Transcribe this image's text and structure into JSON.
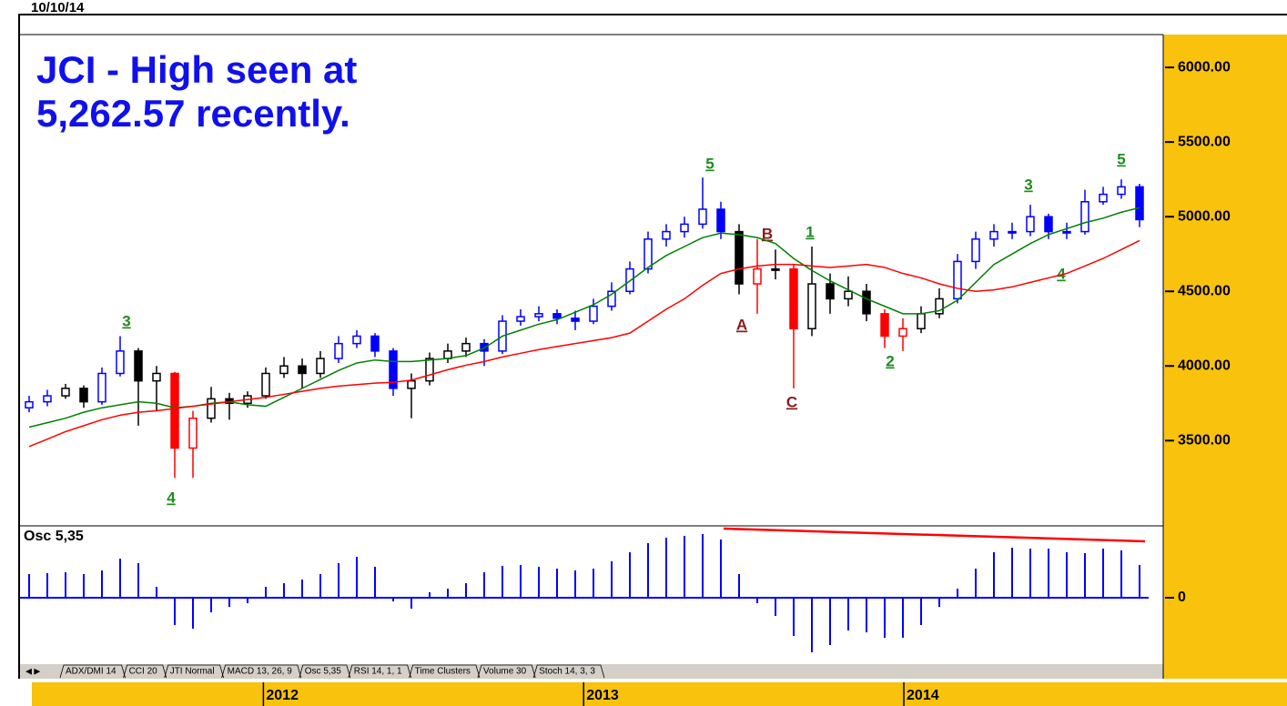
{
  "date": "10/10/14",
  "tabs": [
    "ADX/DMI 14",
    "CCI 20",
    "JTI Normal",
    "MACD 13, 26, 9",
    "Osc 5,35",
    "RSI 14, 1, 1",
    "Time Clusters",
    "Volume 30",
    "Stoch 14, 3, 3"
  ],
  "time_axis": {
    "xlim": [
      2011.24,
      2014.81
    ],
    "xticks": [
      2012,
      2013,
      2014
    ]
  },
  "chart_data": [
    {
      "type": "candlestick",
      "title_lines": [
        "JCI - High seen at",
        "5,262.57 recently."
      ],
      "ylim": [
        2935,
        6220
      ],
      "yticks": [
        {
          "value": 3500,
          "label": "3500.00"
        },
        {
          "value": 4000,
          "label": "4000.00"
        },
        {
          "value": 4500,
          "label": "4500.00"
        },
        {
          "value": 5000,
          "label": "5000.00"
        },
        {
          "value": 5500,
          "label": "5500.00"
        },
        {
          "value": 6000,
          "label": "6000.00"
        }
      ],
      "open": [
        3720,
        3760,
        3800,
        3850,
        3760,
        3950,
        4100,
        3900,
        3950,
        3450,
        3650,
        3780,
        3750,
        3800,
        3950,
        4000,
        3950,
        4050,
        4150,
        4200,
        4100,
        3850,
        3900,
        4050,
        4100,
        4150,
        4100,
        4300,
        4330,
        4350,
        4320,
        4300,
        4400,
        4500,
        4650,
        4850,
        4900,
        4950,
        5050,
        4900,
        4550,
        4650,
        4650,
        4250,
        4550,
        4450,
        4500,
        4350,
        4200,
        4250,
        4350,
        4450,
        4700,
        4850,
        4900,
        4900,
        5000,
        4900,
        4900,
        5100,
        5150,
        5200
      ],
      "high": [
        3800,
        3840,
        3880,
        3870,
        3990,
        4200,
        4120,
        4000,
        3960,
        3700,
        3860,
        3820,
        3830,
        3990,
        4060,
        4050,
        4100,
        4200,
        4240,
        4220,
        4120,
        3950,
        4090,
        4150,
        4190,
        4180,
        4340,
        4380,
        4400,
        4380,
        4370,
        4450,
        4560,
        4700,
        4900,
        4950,
        5000,
        5262,
        5100,
        4950,
        4850,
        4780,
        4680,
        4800,
        4620,
        4600,
        4550,
        4380,
        4320,
        4400,
        4520,
        4750,
        4900,
        4950,
        4960,
        5080,
        5020,
        4960,
        5180,
        5200,
        5250,
        5220
      ],
      "low": [
        3690,
        3730,
        3780,
        3720,
        3740,
        3930,
        3600,
        3700,
        3250,
        3250,
        3620,
        3640,
        3720,
        3780,
        3920,
        3850,
        3920,
        4020,
        4120,
        4060,
        3800,
        3650,
        3870,
        4020,
        4060,
        4000,
        4080,
        4270,
        4300,
        4280,
        4240,
        4280,
        4370,
        4480,
        4620,
        4800,
        4860,
        4920,
        4850,
        4480,
        4350,
        4580,
        3850,
        4200,
        4350,
        4400,
        4300,
        4120,
        4100,
        4220,
        4320,
        4420,
        4650,
        4800,
        4850,
        4870,
        4850,
        4850,
        4880,
        5080,
        5120,
        4930
      ],
      "close": [
        3760,
        3800,
        3850,
        3760,
        3950,
        4100,
        3900,
        3950,
        3450,
        3650,
        3780,
        3750,
        3800,
        3950,
        4000,
        3950,
        4050,
        4150,
        4200,
        4100,
        3850,
        3900,
        4050,
        4100,
        4150,
        4100,
        4300,
        4330,
        4350,
        4320,
        4300,
        4400,
        4500,
        4650,
        4850,
        4900,
        4950,
        5050,
        4900,
        4550,
        4650,
        4650,
        4250,
        4550,
        4450,
        4500,
        4350,
        4200,
        4250,
        4350,
        4450,
        4700,
        4850,
        4900,
        4900,
        5000,
        4900,
        4900,
        5100,
        5150,
        5200,
        4980
      ],
      "colors": [
        "#0000ff",
        "#0000ff",
        "#000000",
        "#000000",
        "#0000ff",
        "#0000ff",
        "#000000",
        "#000000",
        "#ff0000",
        "#ff0000",
        "#000000",
        "#000000",
        "#000000",
        "#000000",
        "#000000",
        "#000000",
        "#000000",
        "#0000ff",
        "#0000ff",
        "#0000ff",
        "#0000ff",
        "#000000",
        "#000000",
        "#000000",
        "#000000",
        "#0000ff",
        "#0000ff",
        "#0000ff",
        "#0000ff",
        "#0000ff",
        "#0000ff",
        "#0000ff",
        "#0000ff",
        "#0000ff",
        "#0000ff",
        "#0000ff",
        "#0000ff",
        "#0000ff",
        "#0000ff",
        "#000000",
        "#ff0000",
        "#000000",
        "#ff0000",
        "#000000",
        "#000000",
        "#000000",
        "#000000",
        "#ff0000",
        "#ff0000",
        "#000000",
        "#000000",
        "#0000ff",
        "#0000ff",
        "#0000ff",
        "#0000ff",
        "#0000ff",
        "#0000ff",
        "#0000ff",
        "#0000ff",
        "#0000ff",
        "#0000ff",
        "#0000ff"
      ],
      "series": [
        {
          "color": "#008000",
          "values": [
            3590,
            3620,
            3650,
            3690,
            3720,
            3740,
            3760,
            3750,
            3720,
            3730,
            3750,
            3760,
            3740,
            3730,
            3790,
            3850,
            3910,
            3970,
            4020,
            4040,
            4030,
            4030,
            4040,
            4050,
            4070,
            4120,
            4200,
            4240,
            4280,
            4310,
            4360,
            4410,
            4480,
            4570,
            4660,
            4740,
            4800,
            4860,
            4890,
            4880,
            4860,
            4820,
            4720,
            4640,
            4570,
            4510,
            4450,
            4400,
            4350,
            4350,
            4370,
            4440,
            4560,
            4680,
            4750,
            4820,
            4880,
            4920,
            4960,
            4990,
            5030,
            5060
          ]
        },
        {
          "color": "#ff0000",
          "values": [
            3460,
            3510,
            3560,
            3600,
            3640,
            3670,
            3690,
            3700,
            3715,
            3730,
            3745,
            3760,
            3775,
            3790,
            3810,
            3830,
            3850,
            3865,
            3875,
            3885,
            3890,
            3905,
            3940,
            3975,
            4005,
            4030,
            4060,
            4085,
            4110,
            4130,
            4150,
            4170,
            4190,
            4220,
            4300,
            4380,
            4450,
            4540,
            4620,
            4650,
            4670,
            4680,
            4680,
            4670,
            4660,
            4670,
            4680,
            4660,
            4620,
            4590,
            4550,
            4520,
            4500,
            4510,
            4530,
            4560,
            4590,
            4620,
            4670,
            4720,
            4780,
            4840
          ]
        }
      ],
      "annotations": [
        {
          "text": "3",
          "color": "#1e8c1e"
        },
        {
          "text": "4",
          "color": "#1e8c1e"
        },
        {
          "text": "5",
          "color": "#1e8c1e"
        },
        {
          "text": "A",
          "color": "#8b1a1a"
        },
        {
          "text": "B",
          "color": "#8b1a1a"
        },
        {
          "text": "C",
          "color": "#8b1a1a"
        },
        {
          "text": "1",
          "color": "#1e8c1e"
        },
        {
          "text": "2",
          "color": "#1e8c1e"
        },
        {
          "text": "3",
          "color": "#1e8c1e"
        },
        {
          "text": "4",
          "color": "#1e8c1e"
        },
        {
          "text": "5",
          "color": "#1e8c1e"
        }
      ]
    },
    {
      "type": "bar",
      "title": "Osc 5,35",
      "color": "#0000ff",
      "ylim": [
        -365,
        385
      ],
      "yticks": [
        0
      ],
      "values": [
        130,
        135,
        140,
        130,
        150,
        215,
        190,
        60,
        -150,
        -170,
        -80,
        -50,
        -30,
        60,
        80,
        100,
        130,
        190,
        225,
        170,
        -20,
        -60,
        30,
        50,
        80,
        140,
        175,
        180,
        170,
        160,
        150,
        160,
        200,
        250,
        300,
        330,
        340,
        350,
        320,
        130,
        -30,
        -100,
        -210,
        -300,
        -260,
        -180,
        -190,
        -220,
        -220,
        -150,
        -50,
        50,
        160,
        250,
        275,
        270,
        270,
        250,
        245,
        270,
        260,
        180
      ]
    }
  ]
}
